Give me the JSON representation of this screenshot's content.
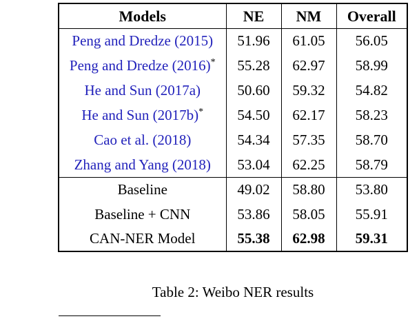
{
  "page": {
    "caption": "Table 2: Weibo NER results"
  },
  "table": {
    "citation_color": "#2222bb",
    "headers": [
      "Models",
      "NE",
      "NM",
      "Overall"
    ],
    "rows": [
      {
        "model": "Peng and Dredze (2015)",
        "sup": "",
        "ne": "51.96",
        "nm": "61.05",
        "overall": "56.05"
      },
      {
        "model": "Peng and Dredze (2016)",
        "sup": "*",
        "ne": "55.28",
        "nm": "62.97",
        "overall": "58.99"
      },
      {
        "model": "He and Sun (2017a)",
        "sup": "",
        "ne": "50.60",
        "nm": "59.32",
        "overall": "54.82"
      },
      {
        "model": "He and Sun (2017b)",
        "sup": "*",
        "ne": "54.50",
        "nm": "62.17",
        "overall": "58.23"
      },
      {
        "model": "Cao et al. (2018)",
        "sup": "",
        "ne": "54.34",
        "nm": "57.35",
        "overall": "58.70"
      },
      {
        "model": "Zhang and Yang (2018)",
        "sup": "",
        "ne": "53.04",
        "nm": "62.25",
        "overall": "58.79"
      },
      {
        "model": "Baseline",
        "sup": "",
        "ne": "49.02",
        "nm": "58.80",
        "overall": "53.80"
      },
      {
        "model": "Baseline + CNN",
        "sup": "",
        "ne": "53.86",
        "nm": "58.05",
        "overall": "55.91"
      },
      {
        "model": "CAN-NER Model",
        "sup": "",
        "ne": "55.38",
        "nm": "62.98",
        "overall": "59.31"
      }
    ]
  }
}
